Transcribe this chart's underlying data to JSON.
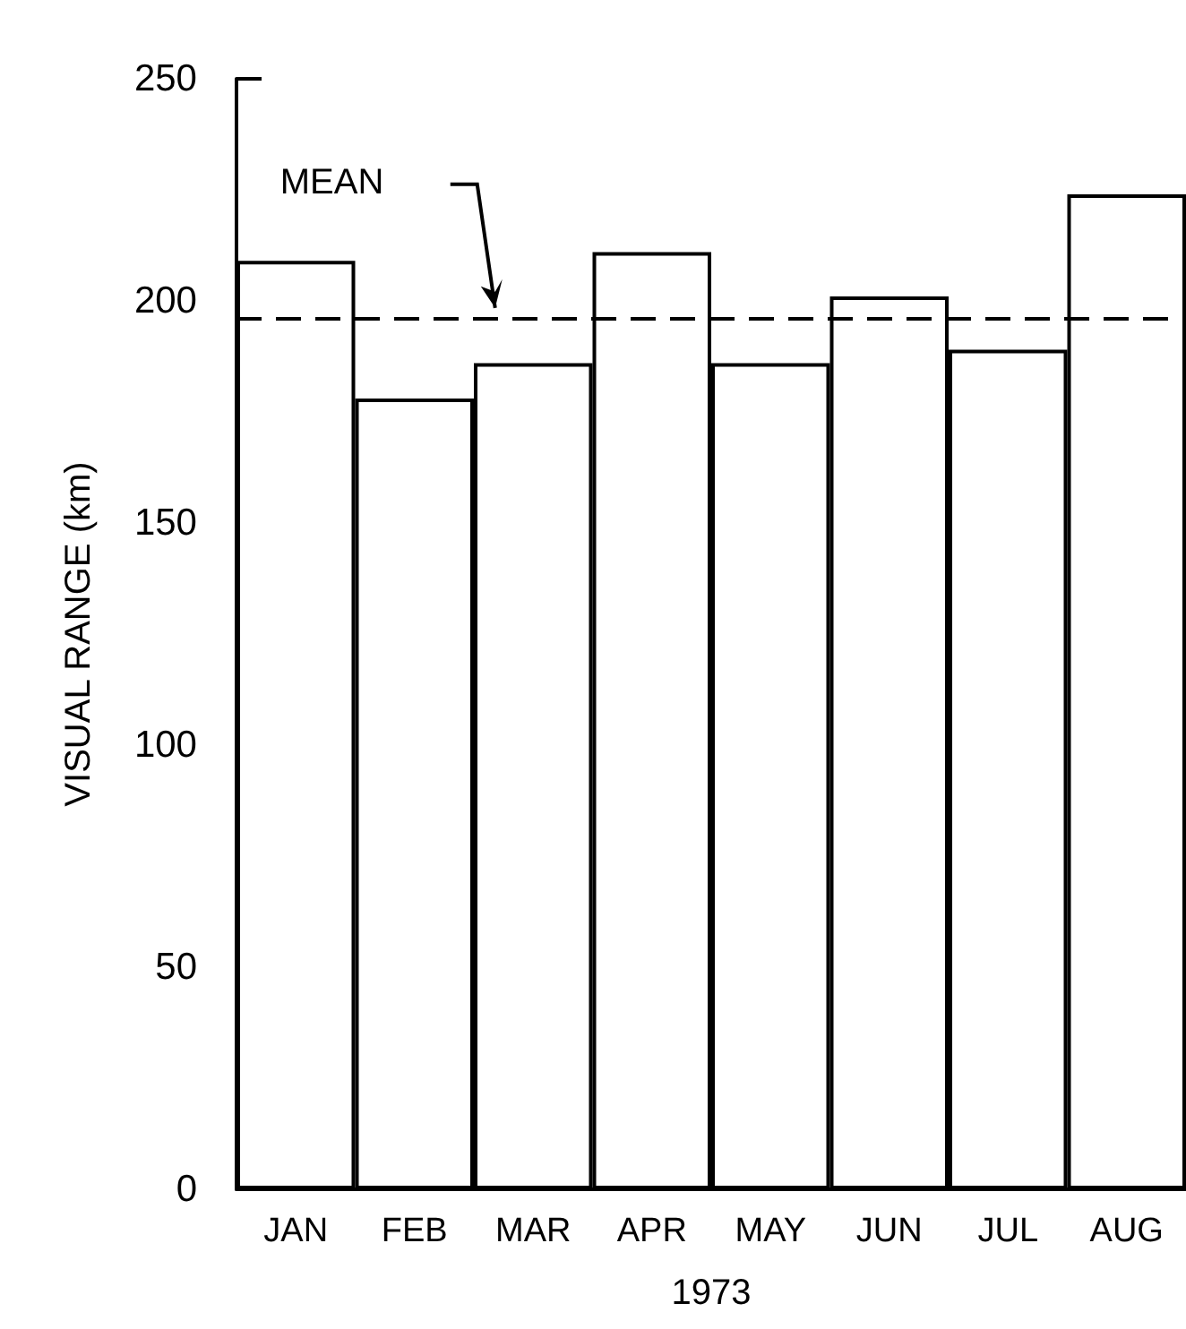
{
  "chart_data": {
    "type": "bar",
    "xlabel": "1973",
    "ylabel": "VISUAL RANGE (km)",
    "categories": [
      "JAN",
      "FEB",
      "MAR",
      "APR",
      "MAY",
      "JUN",
      "JUL",
      "AUG"
    ],
    "values": [
      209,
      178,
      186,
      211,
      186,
      201,
      189,
      224
    ],
    "color": "#ffffff",
    "ylim": [
      0,
      250
    ],
    "yticks": [
      0,
      50,
      100,
      150,
      200,
      250
    ],
    "ref_lines": [
      {
        "axis": "y",
        "value": 196,
        "label": "MEAN",
        "line_style": "dashed"
      }
    ],
    "grid": false
  }
}
